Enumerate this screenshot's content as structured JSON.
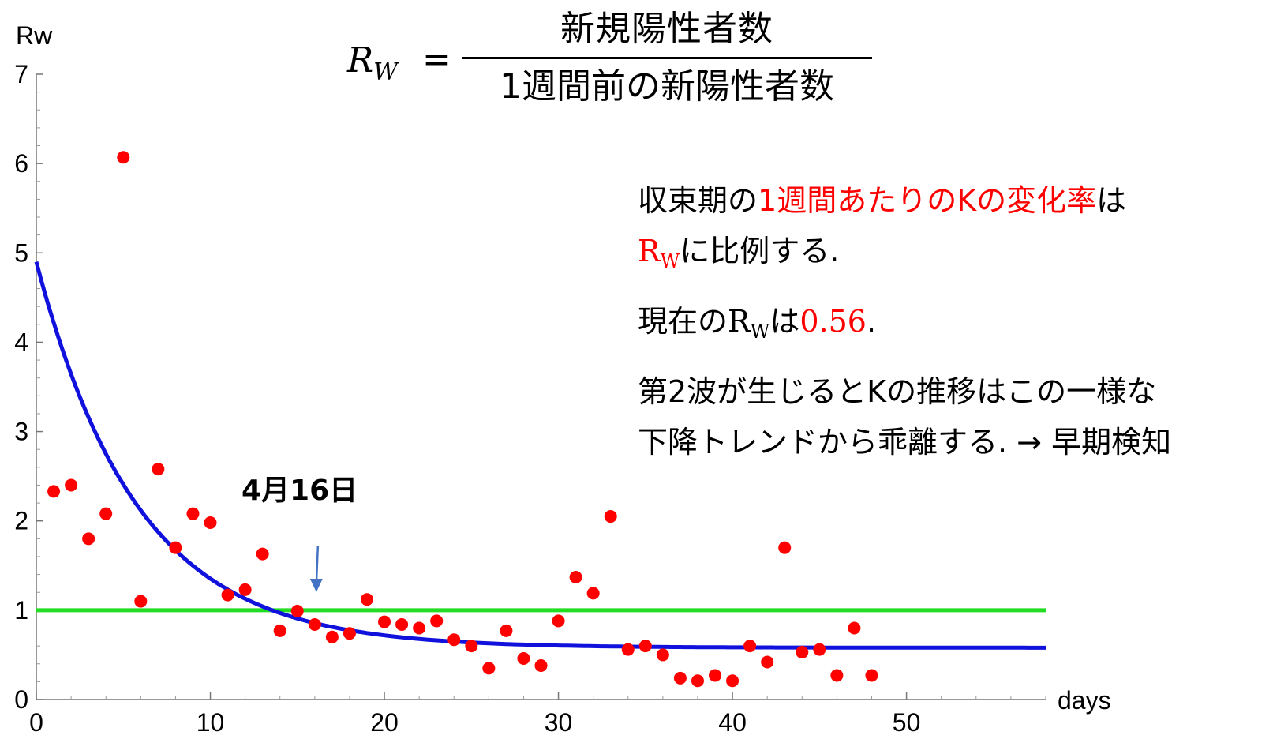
{
  "formula": {
    "lhs": "R",
    "lhs_sub": "W",
    "eq": "=",
    "numerator": "新規陽性者数",
    "denominator": "1週間前の新陽性者数"
  },
  "notes": {
    "line1_a": "収束期の",
    "line1_b": "1週間あたりのKの変化率",
    "line1_c": "は",
    "line2_r": "R",
    "line2_sub": "W",
    "line2_rest": "に比例する.",
    "line3_a": "現在の",
    "line3_r": "R",
    "line3_sub": "W",
    "line3_b": "は",
    "line3_val": "0.56",
    "line3_end": ".",
    "line4": "第2波が生じるとKの推移はこの一様な",
    "line5": "下降トレンドから乖離する.  → 早期検知"
  },
  "annotation": {
    "text": "4月16日",
    "x": 16
  },
  "chart_data": {
    "type": "scatter",
    "ylabel": "Rw",
    "xlabel": "days",
    "xlim": [
      0,
      58
    ],
    "ylim": [
      0,
      7
    ],
    "xticks": [
      0,
      10,
      20,
      30,
      40,
      50
    ],
    "yticks": [
      0,
      1,
      2,
      3,
      4,
      5,
      6,
      7
    ],
    "reference_line": {
      "y": 1,
      "color": "#22dd22"
    },
    "fit_curve": {
      "color": "#1111dd",
      "a": 0.58,
      "b": 4.32,
      "c": 0.172
    },
    "point_color": "#ff0000",
    "points": [
      [
        1,
        2.33
      ],
      [
        2,
        2.4
      ],
      [
        3,
        1.8
      ],
      [
        4,
        2.08
      ],
      [
        5,
        6.07
      ],
      [
        6,
        1.1
      ],
      [
        7,
        2.58
      ],
      [
        8,
        1.7
      ],
      [
        9,
        2.08
      ],
      [
        10,
        1.98
      ],
      [
        11,
        1.17
      ],
      [
        12,
        1.23
      ],
      [
        13,
        1.63
      ],
      [
        14,
        0.77
      ],
      [
        15,
        0.99
      ],
      [
        16,
        0.84
      ],
      [
        17,
        0.7
      ],
      [
        18,
        0.74
      ],
      [
        19,
        1.12
      ],
      [
        20,
        0.87
      ],
      [
        21,
        0.84
      ],
      [
        22,
        0.8
      ],
      [
        23,
        0.88
      ],
      [
        24,
        0.67
      ],
      [
        25,
        0.6
      ],
      [
        26,
        0.35
      ],
      [
        27,
        0.77
      ],
      [
        28,
        0.46
      ],
      [
        29,
        0.38
      ],
      [
        30,
        0.88
      ],
      [
        31,
        1.37
      ],
      [
        32,
        1.19
      ],
      [
        33,
        2.05
      ],
      [
        34,
        0.56
      ],
      [
        35,
        0.6
      ],
      [
        36,
        0.5
      ],
      [
        37,
        0.24
      ],
      [
        38,
        0.21
      ],
      [
        39,
        0.27
      ],
      [
        40,
        0.21
      ],
      [
        41,
        0.6
      ],
      [
        42,
        0.42
      ],
      [
        43,
        1.7
      ],
      [
        44,
        0.53
      ],
      [
        45,
        0.56
      ],
      [
        46,
        0.27
      ],
      [
        47,
        0.8
      ],
      [
        48,
        0.27
      ]
    ]
  }
}
